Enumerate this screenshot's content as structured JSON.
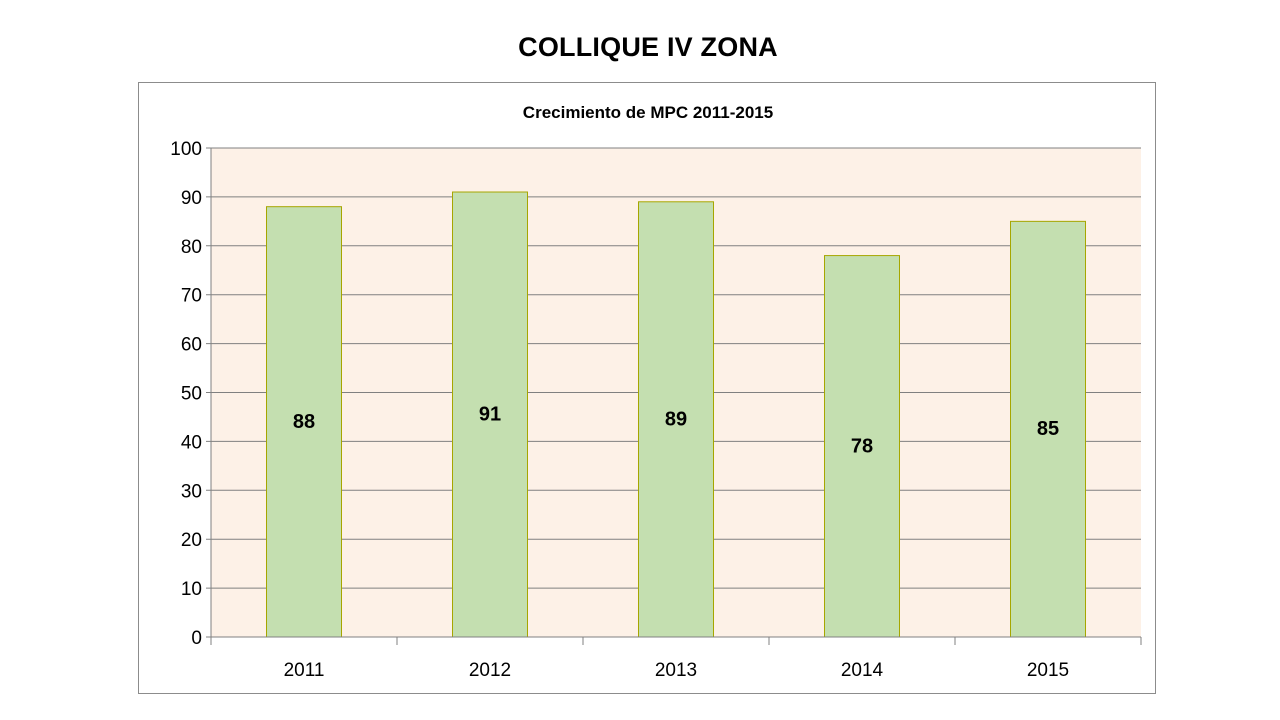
{
  "page": {
    "title": "COLLIQUE IV ZONA"
  },
  "chart_data": {
    "type": "bar",
    "title": "Crecimiento de MPC 2011-2015",
    "xlabel": "",
    "ylabel": "",
    "categories": [
      "2011",
      "2012",
      "2013",
      "2014",
      "2015"
    ],
    "values": [
      88,
      91,
      89,
      78,
      85
    ],
    "data_labels": [
      "88",
      "91",
      "89",
      "78",
      "85"
    ],
    "ylim": [
      0,
      100
    ],
    "yticks": [
      0,
      10,
      20,
      30,
      40,
      50,
      60,
      70,
      80,
      90,
      100
    ],
    "grid": true,
    "legend": "none",
    "colors": {
      "bar_fill": "#c4dfb0",
      "bar_stroke": "#a6a600",
      "plot_background": "#fdf1e7",
      "gridline": "#808080",
      "text": "#000000"
    }
  }
}
